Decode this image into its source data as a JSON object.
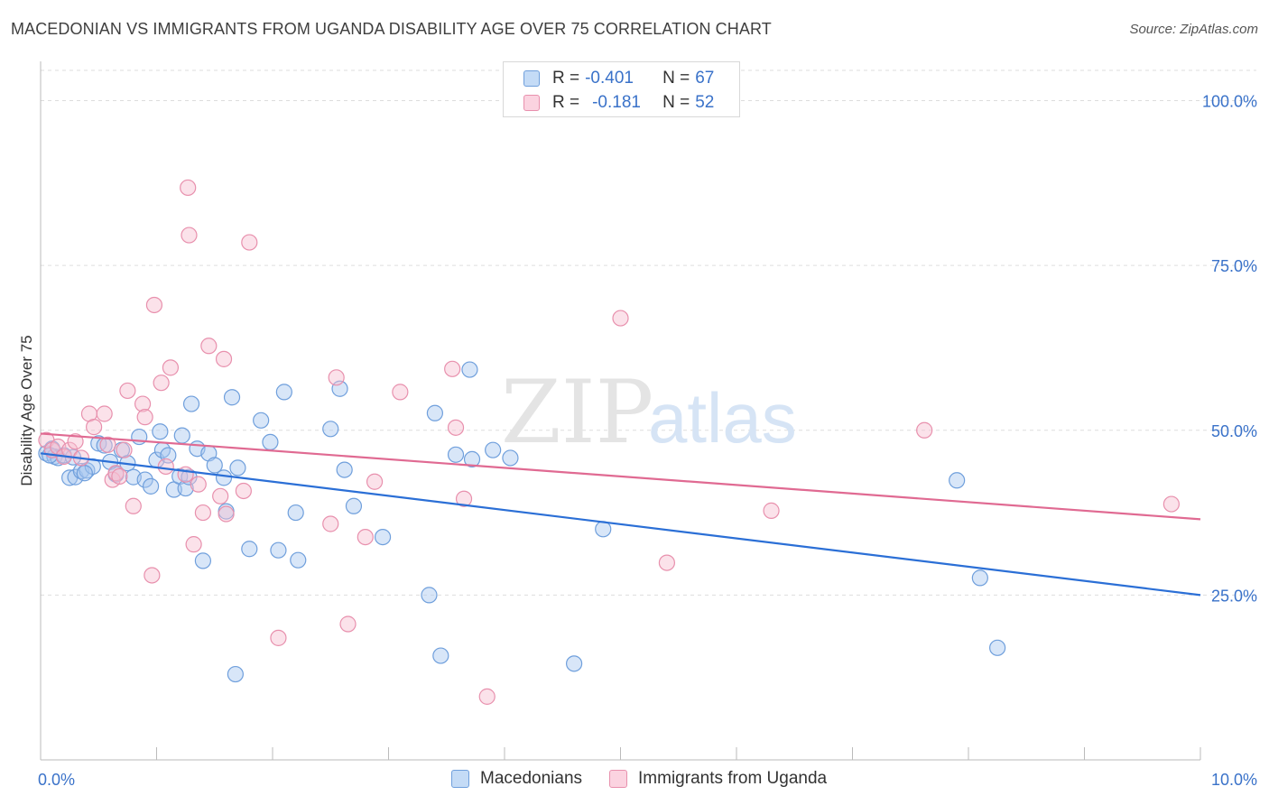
{
  "header": {
    "title": "MACEDONIAN VS IMMIGRANTS FROM UGANDA DISABILITY AGE OVER 75 CORRELATION CHART",
    "source": "Source: ZipAtlas.com"
  },
  "legend": {
    "rows": [
      {
        "r_label": "R = ",
        "r_value": "-0.401",
        "n_label": "N = ",
        "n_value": "67"
      },
      {
        "r_label": "R = ",
        "r_value": "-0.181",
        "n_label": "N = ",
        "n_value": "52"
      }
    ]
  },
  "watermark": {
    "zip": "ZIP",
    "atlas": "atlas"
  },
  "colors": {
    "blue_fill": "#a9c8f0",
    "blue_stroke": "#6f9fdc",
    "blue_line": "#2b6fd6",
    "pink_fill": "#f7bfd0",
    "pink_stroke": "#e890ad",
    "pink_line": "#e06a92",
    "axis_text": "#3a72c9",
    "grid": "#dddddd"
  },
  "chart_data": {
    "type": "scatter",
    "title": "MACEDONIAN VS IMMIGRANTS FROM UGANDA DISABILITY AGE OVER 75 CORRELATION CHART",
    "xlabel": "",
    "ylabel": "Disability Age Over 75",
    "xlim": [
      0,
      10
    ],
    "ylim": [
      0,
      105
    ],
    "x_tick_labels": [
      "0.0%",
      "10.0%"
    ],
    "y_ticks": [
      25,
      50,
      75,
      100
    ],
    "y_tick_labels": [
      "25.0%",
      "50.0%",
      "75.0%",
      "100.0%"
    ],
    "legend_position": "top-center",
    "series": [
      {
        "name": "Macedonians",
        "color": "blue",
        "trend": {
          "x": [
            0,
            10
          ],
          "y": [
            46.5,
            25
          ]
        },
        "points": [
          [
            0.05,
            46.5
          ],
          [
            0.1,
            47.2
          ],
          [
            0.12,
            46.0
          ],
          [
            0.15,
            45.8
          ],
          [
            0.2,
            46.2
          ],
          [
            0.25,
            42.8
          ],
          [
            0.3,
            42.9
          ],
          [
            0.35,
            43.8
          ],
          [
            0.4,
            43.9
          ],
          [
            0.45,
            44.5
          ],
          [
            0.5,
            48.0
          ],
          [
            0.55,
            47.7
          ],
          [
            0.6,
            45.2
          ],
          [
            0.65,
            43.3
          ],
          [
            0.7,
            47.0
          ],
          [
            0.75,
            45.0
          ],
          [
            0.8,
            42.9
          ],
          [
            0.85,
            49.0
          ],
          [
            0.9,
            42.5
          ],
          [
            0.95,
            41.5
          ],
          [
            1.0,
            45.5
          ],
          [
            1.03,
            49.8
          ],
          [
            1.05,
            47.0
          ],
          [
            1.1,
            46.2
          ],
          [
            1.15,
            41.0
          ],
          [
            1.2,
            43.0
          ],
          [
            1.22,
            49.2
          ],
          [
            1.25,
            41.2
          ],
          [
            1.3,
            54.0
          ],
          [
            1.35,
            47.2
          ],
          [
            1.4,
            30.2
          ],
          [
            1.45,
            46.5
          ],
          [
            1.5,
            44.7
          ],
          [
            1.58,
            42.8
          ],
          [
            1.6,
            37.7
          ],
          [
            1.65,
            55.0
          ],
          [
            1.68,
            13.0
          ],
          [
            1.7,
            44.3
          ],
          [
            1.8,
            32.0
          ],
          [
            1.9,
            51.5
          ],
          [
            1.98,
            48.2
          ],
          [
            2.05,
            31.8
          ],
          [
            2.1,
            55.8
          ],
          [
            2.2,
            37.5
          ],
          [
            2.22,
            30.3
          ],
          [
            2.5,
            50.2
          ],
          [
            2.58,
            56.3
          ],
          [
            2.62,
            44.0
          ],
          [
            2.7,
            38.5
          ],
          [
            2.95,
            33.8
          ],
          [
            3.35,
            25.0
          ],
          [
            3.4,
            52.6
          ],
          [
            3.45,
            15.8
          ],
          [
            3.58,
            46.3
          ],
          [
            3.72,
            45.6
          ],
          [
            3.7,
            59.2
          ],
          [
            3.9,
            47.0
          ],
          [
            4.05,
            45.8
          ],
          [
            4.6,
            14.6
          ],
          [
            4.85,
            35.0
          ],
          [
            7.9,
            42.4
          ],
          [
            8.1,
            27.6
          ],
          [
            8.25,
            17.0
          ],
          [
            0.08,
            46.2
          ],
          [
            0.38,
            43.5
          ],
          [
            0.28,
            45.9
          ],
          [
            1.28,
            42.9
          ]
        ]
      },
      {
        "name": "Immigrants from Uganda",
        "color": "pink",
        "trend": {
          "x": [
            0,
            10
          ],
          "y": [
            49.5,
            36.5
          ]
        },
        "points": [
          [
            0.05,
            48.5
          ],
          [
            0.1,
            47.0
          ],
          [
            0.15,
            47.5
          ],
          [
            0.2,
            46.0
          ],
          [
            0.25,
            47.0
          ],
          [
            0.3,
            48.3
          ],
          [
            0.35,
            45.8
          ],
          [
            0.42,
            52.5
          ],
          [
            0.46,
            50.5
          ],
          [
            0.55,
            52.5
          ],
          [
            0.58,
            47.8
          ],
          [
            0.62,
            42.5
          ],
          [
            0.65,
            43.5
          ],
          [
            0.72,
            47.0
          ],
          [
            0.75,
            56.0
          ],
          [
            0.8,
            38.5
          ],
          [
            0.88,
            54.0
          ],
          [
            0.9,
            52.0
          ],
          [
            0.96,
            28.0
          ],
          [
            0.98,
            69.0
          ],
          [
            1.04,
            57.2
          ],
          [
            1.08,
            44.5
          ],
          [
            1.12,
            59.5
          ],
          [
            1.25,
            43.3
          ],
          [
            1.27,
            86.8
          ],
          [
            1.28,
            79.6
          ],
          [
            1.32,
            32.7
          ],
          [
            1.36,
            41.8
          ],
          [
            1.4,
            37.5
          ],
          [
            1.45,
            62.8
          ],
          [
            1.55,
            40.0
          ],
          [
            1.58,
            60.8
          ],
          [
            1.6,
            37.3
          ],
          [
            1.75,
            40.8
          ],
          [
            1.8,
            78.5
          ],
          [
            2.05,
            18.5
          ],
          [
            2.5,
            35.8
          ],
          [
            2.55,
            58.0
          ],
          [
            2.65,
            20.6
          ],
          [
            2.8,
            33.8
          ],
          [
            2.88,
            42.2
          ],
          [
            3.1,
            55.8
          ],
          [
            3.55,
            59.3
          ],
          [
            3.58,
            50.4
          ],
          [
            3.65,
            39.6
          ],
          [
            3.85,
            9.6
          ],
          [
            5.0,
            67.0
          ],
          [
            5.4,
            29.9
          ],
          [
            6.3,
            37.8
          ],
          [
            7.62,
            50.0
          ],
          [
            9.75,
            38.8
          ],
          [
            0.68,
            43.0
          ]
        ]
      }
    ]
  },
  "bottom_legend": {
    "items": [
      "Macedonians",
      "Immigrants from Uganda"
    ]
  }
}
